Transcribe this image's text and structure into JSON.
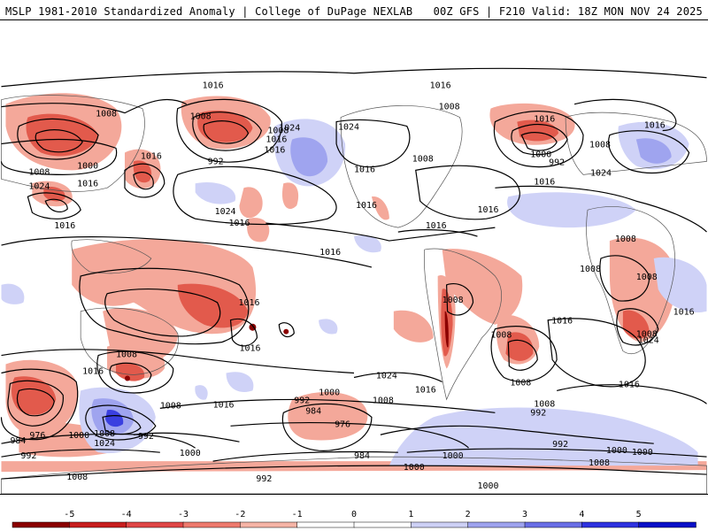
{
  "header": {
    "left": "MSLP 1981-2010 Standardized Anomaly | College of DuPage NEXLAB",
    "right": "00Z GFS | F210 Valid: 18Z MON NOV 24 2025"
  },
  "contour_labels": [
    {
      "id": "l1",
      "text": "1016"
    },
    {
      "id": "l2",
      "text": "1016"
    },
    {
      "id": "l3",
      "text": "1008"
    },
    {
      "id": "l4",
      "text": "1008"
    },
    {
      "id": "l5",
      "text": "1000"
    },
    {
      "id": "l6",
      "text": "1008"
    },
    {
      "id": "l7",
      "text": "1016"
    },
    {
      "id": "l8",
      "text": "1024"
    },
    {
      "id": "l9",
      "text": "1016"
    },
    {
      "id": "l10",
      "text": "1008"
    },
    {
      "id": "l11",
      "text": "1024"
    },
    {
      "id": "l12",
      "text": "1016"
    },
    {
      "id": "l13",
      "text": "992"
    },
    {
      "id": "l14",
      "text": "1016"
    },
    {
      "id": "l15",
      "text": "1024"
    },
    {
      "id": "l16",
      "text": "1016"
    },
    {
      "id": "l17",
      "text": "1024"
    },
    {
      "id": "l18",
      "text": "1016"
    },
    {
      "id": "l19",
      "text": "1008"
    },
    {
      "id": "l20",
      "text": "1016"
    },
    {
      "id": "l21",
      "text": "1008"
    },
    {
      "id": "l22",
      "text": "1016"
    },
    {
      "id": "l23",
      "text": "1016"
    },
    {
      "id": "l24",
      "text": "1016"
    },
    {
      "id": "l25",
      "text": "1000"
    },
    {
      "id": "l26",
      "text": "992"
    },
    {
      "id": "l27",
      "text": "1016"
    },
    {
      "id": "l28",
      "text": "1008"
    },
    {
      "id": "l29",
      "text": "1016"
    },
    {
      "id": "l30",
      "text": "1024"
    },
    {
      "id": "l31",
      "text": "1008"
    },
    {
      "id": "l32",
      "text": "1008"
    },
    {
      "id": "l33",
      "text": "1008"
    },
    {
      "id": "l34",
      "text": "1016"
    },
    {
      "id": "l35",
      "text": "1008"
    },
    {
      "id": "l36",
      "text": "1008"
    },
    {
      "id": "l37",
      "text": "1016"
    },
    {
      "id": "l38",
      "text": "1008"
    },
    {
      "id": "l39",
      "text": "1016"
    },
    {
      "id": "l40",
      "text": "1024"
    },
    {
      "id": "l41",
      "text": "1016"
    },
    {
      "id": "l42",
      "text": "1008"
    },
    {
      "id": "l43",
      "text": "1016"
    },
    {
      "id": "l44",
      "text": "1016"
    },
    {
      "id": "l45",
      "text": "1016"
    },
    {
      "id": "l46",
      "text": "1008"
    },
    {
      "id": "l47",
      "text": "1016"
    },
    {
      "id": "l48",
      "text": "1008"
    },
    {
      "id": "l49",
      "text": "1016"
    },
    {
      "id": "l50",
      "text": "1000"
    },
    {
      "id": "l51",
      "text": "992"
    },
    {
      "id": "l52",
      "text": "984"
    },
    {
      "id": "l53",
      "text": "976"
    },
    {
      "id": "l54",
      "text": "1008"
    },
    {
      "id": "l55",
      "text": "1008"
    },
    {
      "id": "l56",
      "text": "1024"
    },
    {
      "id": "l57",
      "text": "992"
    },
    {
      "id": "l58",
      "text": "984"
    },
    {
      "id": "l59",
      "text": "976"
    },
    {
      "id": "l60",
      "text": "1000"
    },
    {
      "id": "l61",
      "text": "992"
    },
    {
      "id": "l62",
      "text": "1000"
    },
    {
      "id": "l63",
      "text": "992"
    },
    {
      "id": "l64",
      "text": "984"
    },
    {
      "id": "l65",
      "text": "1000"
    },
    {
      "id": "l66",
      "text": "1008"
    },
    {
      "id": "l67",
      "text": "1000"
    },
    {
      "id": "l68",
      "text": "1000"
    },
    {
      "id": "l69",
      "text": "992"
    },
    {
      "id": "l70",
      "text": "1000"
    },
    {
      "id": "l71",
      "text": "992"
    },
    {
      "id": "l72",
      "text": "1008"
    },
    {
      "id": "l73",
      "text": "1000"
    },
    {
      "id": "l74",
      "text": "1008"
    },
    {
      "id": "l75",
      "text": "1016"
    },
    {
      "id": "l76",
      "text": "1024"
    }
  ],
  "legend": {
    "ticks": [
      "-5",
      "-4",
      "-3",
      "-2",
      "-1",
      "0",
      "1",
      "2",
      "3",
      "4",
      "5"
    ],
    "colors": [
      "#8b0000",
      "#c81e1e",
      "#e04646",
      "#ee7a6e",
      "#f6b4a6",
      "#ffffff",
      "#ffffff",
      "#cdd0f5",
      "#9ea3ee",
      "#6a6fe6",
      "#2f33e0",
      "#0a10c8"
    ]
  }
}
